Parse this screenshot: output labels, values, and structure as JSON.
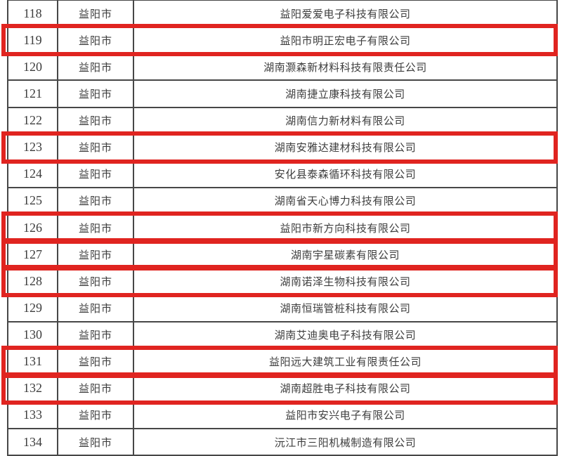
{
  "colors": {
    "highlight": "#e02420",
    "grid": "#474747",
    "text": "#3d3d3d",
    "background": "#ffffff"
  },
  "table": {
    "rows": [
      {
        "no": "118",
        "city": "益阳市",
        "company": "益阳爱爱电子科技有限公司",
        "highlighted": false
      },
      {
        "no": "119",
        "city": "益阳市",
        "company": "益阳市明正宏电子有限公司",
        "highlighted": true
      },
      {
        "no": "120",
        "city": "益阳市",
        "company": "湖南灏森新材料科技有限责任公司",
        "highlighted": false
      },
      {
        "no": "121",
        "city": "益阳市",
        "company": "湖南捷立康科技有限公司",
        "highlighted": false
      },
      {
        "no": "122",
        "city": "益阳市",
        "company": "湖南信力新材料有限公司",
        "highlighted": false
      },
      {
        "no": "123",
        "city": "益阳市",
        "company": "湖南安雅达建材科技有限公司",
        "highlighted": true
      },
      {
        "no": "124",
        "city": "益阳市",
        "company": "安化县泰森循环科技有限公司",
        "highlighted": false
      },
      {
        "no": "125",
        "city": "益阳市",
        "company": "湖南省天心博力科技有限公司",
        "highlighted": false
      },
      {
        "no": "126",
        "city": "益阳市",
        "company": "益阳市新方向科技有限公司",
        "highlighted": true
      },
      {
        "no": "127",
        "city": "益阳市",
        "company": "湖南宇星碳素有限公司",
        "highlighted": true
      },
      {
        "no": "128",
        "city": "益阳市",
        "company": "湖南诺泽生物科技有限公司",
        "highlighted": true
      },
      {
        "no": "129",
        "city": "益阳市",
        "company": "湖南恒瑞管桩科技有限公司",
        "highlighted": false
      },
      {
        "no": "130",
        "city": "益阳市",
        "company": "湖南艾迪奥电子科技有限公司",
        "highlighted": false
      },
      {
        "no": "131",
        "city": "益阳市",
        "company": "益阳远大建筑工业有限责任公司",
        "highlighted": true
      },
      {
        "no": "132",
        "city": "益阳市",
        "company": "湖南超胜电子科技有限公司",
        "highlighted": true
      },
      {
        "no": "133",
        "city": "益阳市",
        "company": "益阳市安兴电子有限公司",
        "highlighted": false
      },
      {
        "no": "134",
        "city": "益阳市",
        "company": "沅江市三阳机械制造有限公司",
        "highlighted": false
      }
    ]
  }
}
